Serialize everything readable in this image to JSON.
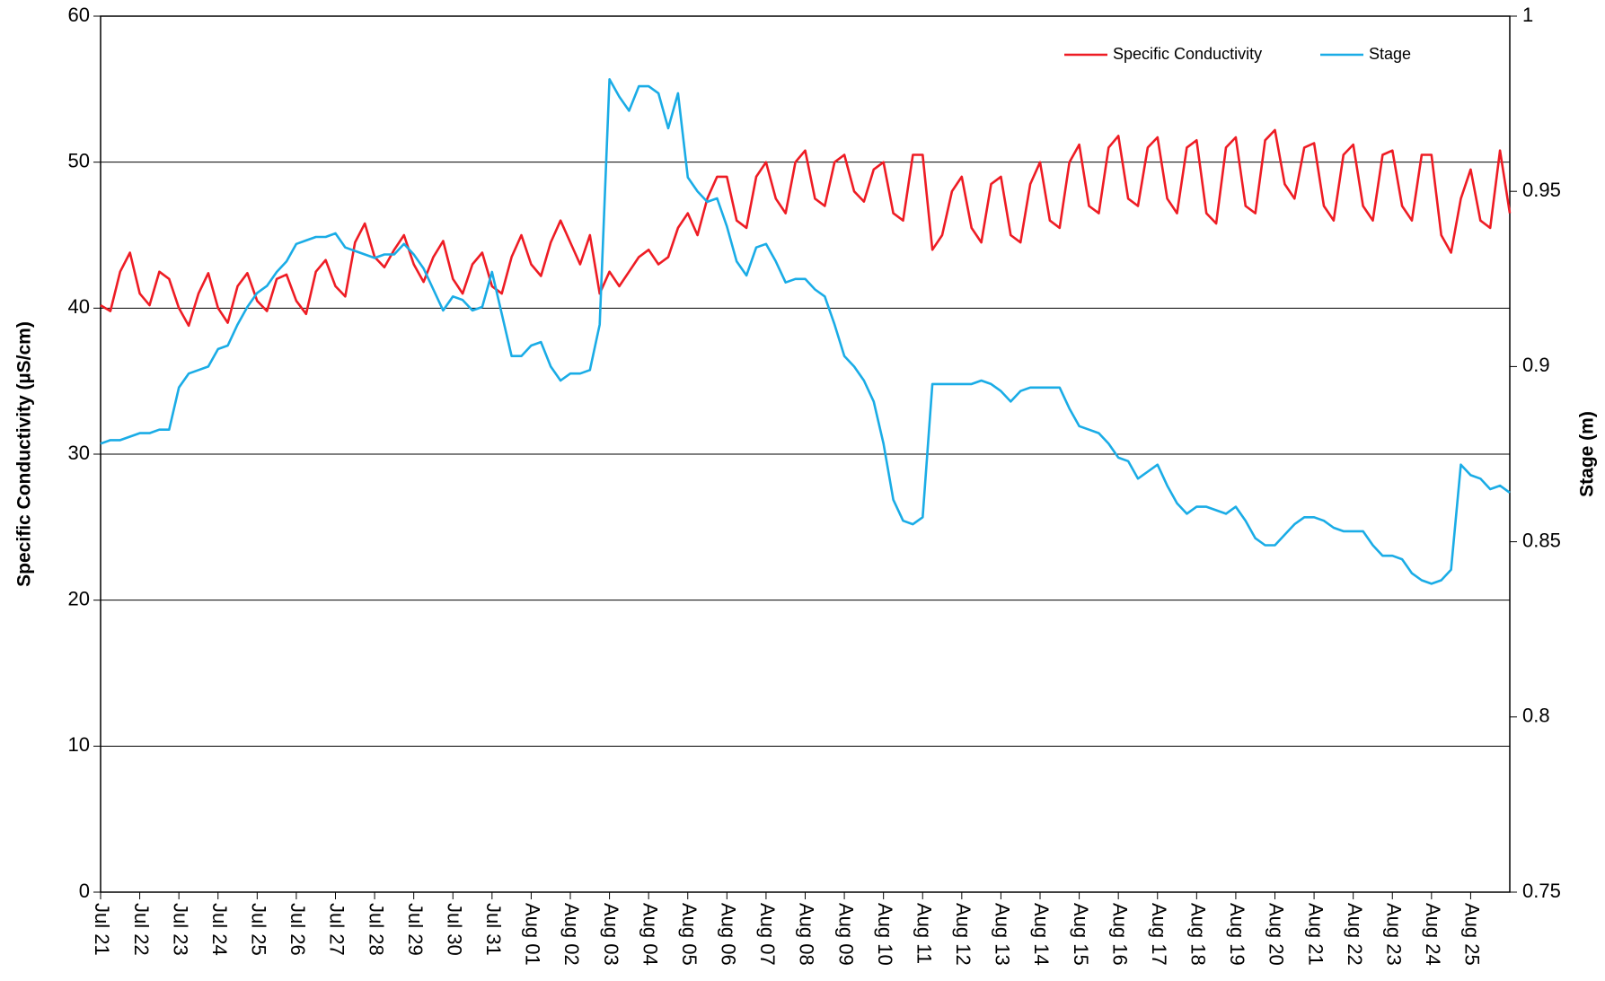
{
  "chart_data": {
    "type": "line",
    "categories": [
      "Jul 21",
      null,
      null,
      null,
      "Jul 22",
      null,
      null,
      null,
      "Jul 23",
      null,
      null,
      null,
      "Jul 24",
      null,
      null,
      null,
      "Jul 25",
      null,
      null,
      null,
      "Jul 26",
      null,
      null,
      null,
      "Jul 27",
      null,
      null,
      null,
      "Jul 28",
      null,
      null,
      null,
      "Jul 29",
      null,
      null,
      null,
      "Jul 30",
      null,
      null,
      null,
      "Jul 31",
      null,
      null,
      null,
      "Aug 01",
      null,
      null,
      null,
      "Aug 02",
      null,
      null,
      null,
      "Aug 03",
      null,
      null,
      null,
      "Aug 04",
      null,
      null,
      null,
      "Aug 05",
      null,
      null,
      null,
      "Aug 06",
      null,
      null,
      null,
      "Aug 07",
      null,
      null,
      null,
      "Aug 08",
      null,
      null,
      null,
      "Aug 09",
      null,
      null,
      null,
      "Aug 10",
      null,
      null,
      null,
      "Aug 11",
      null,
      null,
      null,
      "Aug 12",
      null,
      null,
      null,
      "Aug 13",
      null,
      null,
      null,
      "Aug 14",
      null,
      null,
      null,
      "Aug 15",
      null,
      null,
      null,
      "Aug 16",
      null,
      null,
      null,
      "Aug 17",
      null,
      null,
      null,
      "Aug 18",
      null,
      null,
      null,
      "Aug 19",
      null,
      null,
      null,
      "Aug 20",
      null,
      null,
      null,
      "Aug 21",
      null,
      null,
      null,
      "Aug 22",
      null,
      null,
      null,
      "Aug 23",
      null,
      null,
      null,
      "Aug 24",
      null,
      null,
      null,
      "Aug 25",
      null,
      null,
      null,
      null
    ],
    "ylabel": "Specific Conductivity (µS/cm)",
    "y2label": "Stage (m)",
    "ylim": [
      0,
      60
    ],
    "yticks": [
      0,
      10,
      20,
      30,
      40,
      50,
      60
    ],
    "y2lim": [
      0.75,
      1
    ],
    "y2ticks": [
      0.75,
      0.8,
      0.85,
      0.9,
      0.95,
      1
    ],
    "grid": true,
    "legend": "upper right",
    "series": [
      {
        "name": "Specific Conductivity",
        "color": "#ee1c24",
        "values": [
          40.2,
          39.8,
          42.5,
          43.8,
          41,
          40.2,
          42.5,
          42,
          40,
          38.8,
          41,
          42.4,
          40,
          39,
          41.5,
          42.4,
          40.5,
          39.8,
          42,
          42.3,
          40.5,
          39.6,
          42.5,
          43.3,
          41.5,
          40.8,
          44.5,
          45.8,
          43.5,
          42.8,
          44,
          45,
          43,
          41.8,
          43.5,
          44.6,
          42,
          41,
          43,
          43.8,
          41.5,
          41,
          43.5,
          45,
          43,
          42.2,
          44.5,
          46,
          44.5,
          43,
          45,
          41,
          42.5,
          41.5,
          42.5,
          43.5,
          44,
          43,
          43.5,
          45.5,
          46.5,
          45,
          47.5,
          49,
          49,
          46,
          45.5,
          49,
          50,
          47.5,
          46.5,
          50,
          50.8,
          47.5,
          47,
          50,
          50.5,
          48,
          47.3,
          49.5,
          50,
          46.5,
          46,
          50.5,
          50.5,
          44,
          45,
          48,
          49,
          45.5,
          44.5,
          48.5,
          49,
          45,
          44.5,
          48.5,
          50,
          46,
          45.5,
          50,
          51.2,
          47,
          46.5,
          51,
          51.8,
          47.5,
          47,
          51,
          51.7,
          47.5,
          46.5,
          51,
          51.5,
          46.5,
          45.8,
          51,
          51.7,
          47,
          46.5,
          51.5,
          52.2,
          48.5,
          47.5,
          51,
          51.3,
          47,
          46,
          50.5,
          51.2,
          47,
          46,
          50.5,
          50.8,
          47,
          46,
          50.5,
          50.5,
          45,
          43.8,
          47.5,
          49.5,
          46,
          45.5,
          50.8,
          46.5
        ]
      },
      {
        "name": "Stage",
        "color": "#1aace6",
        "axis": "y2",
        "values": [
          0.878,
          0.879,
          0.879,
          0.88,
          0.881,
          0.881,
          0.882,
          0.882,
          0.894,
          0.898,
          0.899,
          0.9,
          0.905,
          0.906,
          0.912,
          0.917,
          0.921,
          0.923,
          0.927,
          0.93,
          0.935,
          0.936,
          0.937,
          0.937,
          0.938,
          0.934,
          0.933,
          0.932,
          0.931,
          0.932,
          0.932,
          0.935,
          0.932,
          0.928,
          0.922,
          0.916,
          0.92,
          0.919,
          0.916,
          0.917,
          0.927,
          0.915,
          0.903,
          0.903,
          0.906,
          0.907,
          0.9,
          0.896,
          0.898,
          0.898,
          0.899,
          0.912,
          0.982,
          0.977,
          0.973,
          0.98,
          0.98,
          0.978,
          0.968,
          0.978,
          0.954,
          0.95,
          0.947,
          0.948,
          0.94,
          0.93,
          0.926,
          0.934,
          0.935,
          0.93,
          0.924,
          0.925,
          0.925,
          0.922,
          0.92,
          0.912,
          0.903,
          0.9,
          0.896,
          0.89,
          0.878,
          0.862,
          0.856,
          0.855,
          0.857,
          0.895,
          0.895,
          0.895,
          0.895,
          0.895,
          0.896,
          0.895,
          0.893,
          0.89,
          0.893,
          0.894,
          0.894,
          0.894,
          0.894,
          0.888,
          0.883,
          0.882,
          0.881,
          0.878,
          0.874,
          0.873,
          0.868,
          0.87,
          0.872,
          0.866,
          0.861,
          0.858,
          0.86,
          0.86,
          0.859,
          0.858,
          0.86,
          0.856,
          0.851,
          0.849,
          0.849,
          0.852,
          0.855,
          0.857,
          0.857,
          0.856,
          0.854,
          0.853,
          0.853,
          0.853,
          0.849,
          0.846,
          0.846,
          0.845,
          0.841,
          0.839,
          0.838,
          0.839,
          0.842,
          0.872,
          0.869,
          0.868,
          0.865,
          0.866,
          0.864
        ]
      }
    ]
  }
}
